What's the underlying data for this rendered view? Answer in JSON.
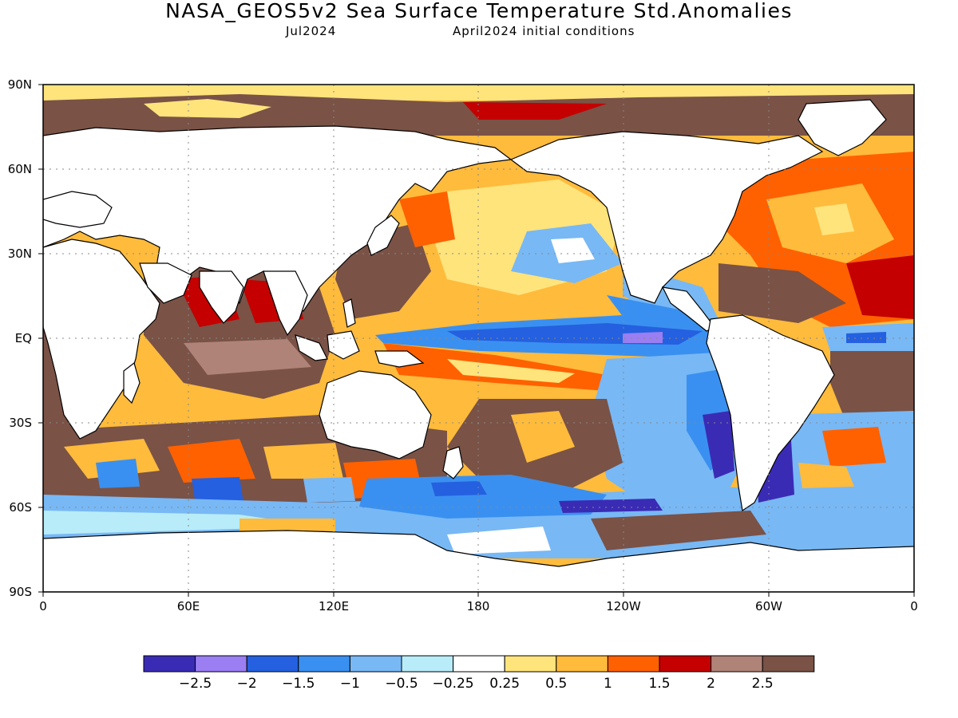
{
  "title": "NASA_GEOS5v2 Sea Surface Temperature Std.Anomalies",
  "subtitle_left": "Jul2024",
  "subtitle_right": "April2024 initial conditions",
  "map": {
    "lat_labels": [
      "90N",
      "60N",
      "30N",
      "EQ",
      "30S",
      "60S",
      "90S"
    ],
    "lon_labels": [
      "0",
      "60E",
      "120E",
      "180",
      "120W",
      "60W",
      "0"
    ],
    "land_color": "#ffffff",
    "coast_color": "#000000",
    "grid": "dotted"
  },
  "colorbar": {
    "colors": [
      "#3a2bb5",
      "#9a7ef2",
      "#2460e0",
      "#3a90f0",
      "#78b8f5",
      "#b8ecf8",
      "#ffffff",
      "#ffe47c",
      "#ffbb3c",
      "#ff6100",
      "#c40000",
      "#b08378",
      "#7a5246"
    ],
    "labels": [
      "−2.5",
      "−2",
      "−1.5",
      "−1",
      "−0.5",
      "−0.25",
      "0.25",
      "0.5",
      "1",
      "1.5",
      "2",
      "2.5"
    ]
  }
}
